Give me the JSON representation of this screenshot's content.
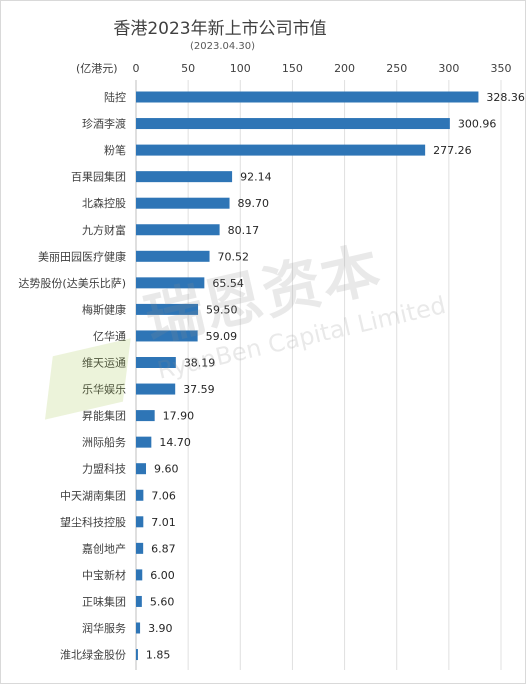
{
  "chart_data": {
    "type": "bar",
    "orientation": "horizontal",
    "title": "香港2023年新上市公司市值",
    "subtitle": "(2023.04.30)",
    "unit_label": "(亿港元)",
    "xlim": [
      0,
      350
    ],
    "ticks": [
      0,
      50,
      100,
      150,
      200,
      250,
      300,
      350
    ],
    "tick_position": "top",
    "grid": true,
    "bar_color": "#2e75b6",
    "categories": [
      "陆控",
      "珍酒李渡",
      "粉笔",
      "百果园集团",
      "北森控股",
      "九方财富",
      "美丽田园医疗健康",
      "达势股份(达美乐比萨)",
      "梅斯健康",
      "亿华通",
      "维天运通",
      "乐华娱乐",
      "昇能集团",
      "洲际船务",
      "力盟科技",
      "中天湖南集团",
      "望尘科技控股",
      "嘉创地产",
      "中宝新材",
      "正味集团",
      "润华服务",
      "淮北绿金股份"
    ],
    "values": [
      328.36,
      300.96,
      277.26,
      92.14,
      89.7,
      80.17,
      70.52,
      65.54,
      59.5,
      59.09,
      38.19,
      37.59,
      17.9,
      14.7,
      9.6,
      7.06,
      7.01,
      6.87,
      6.0,
      5.6,
      3.9,
      1.85
    ],
    "value_labels": [
      "328.36",
      "300.96",
      "277.26",
      "92.14",
      "89.70",
      "80.17",
      "70.52",
      "65.54",
      "59.50",
      "59.09",
      "38.19",
      "37.59",
      "17.90",
      "14.70",
      "9.60",
      "7.06",
      "7.01",
      "6.87",
      "6.00",
      "5.60",
      "3.90",
      "1.85"
    ]
  },
  "watermark": {
    "text_cn": "瑞恩资本",
    "text_en": "RyanBen Capital Limited"
  }
}
